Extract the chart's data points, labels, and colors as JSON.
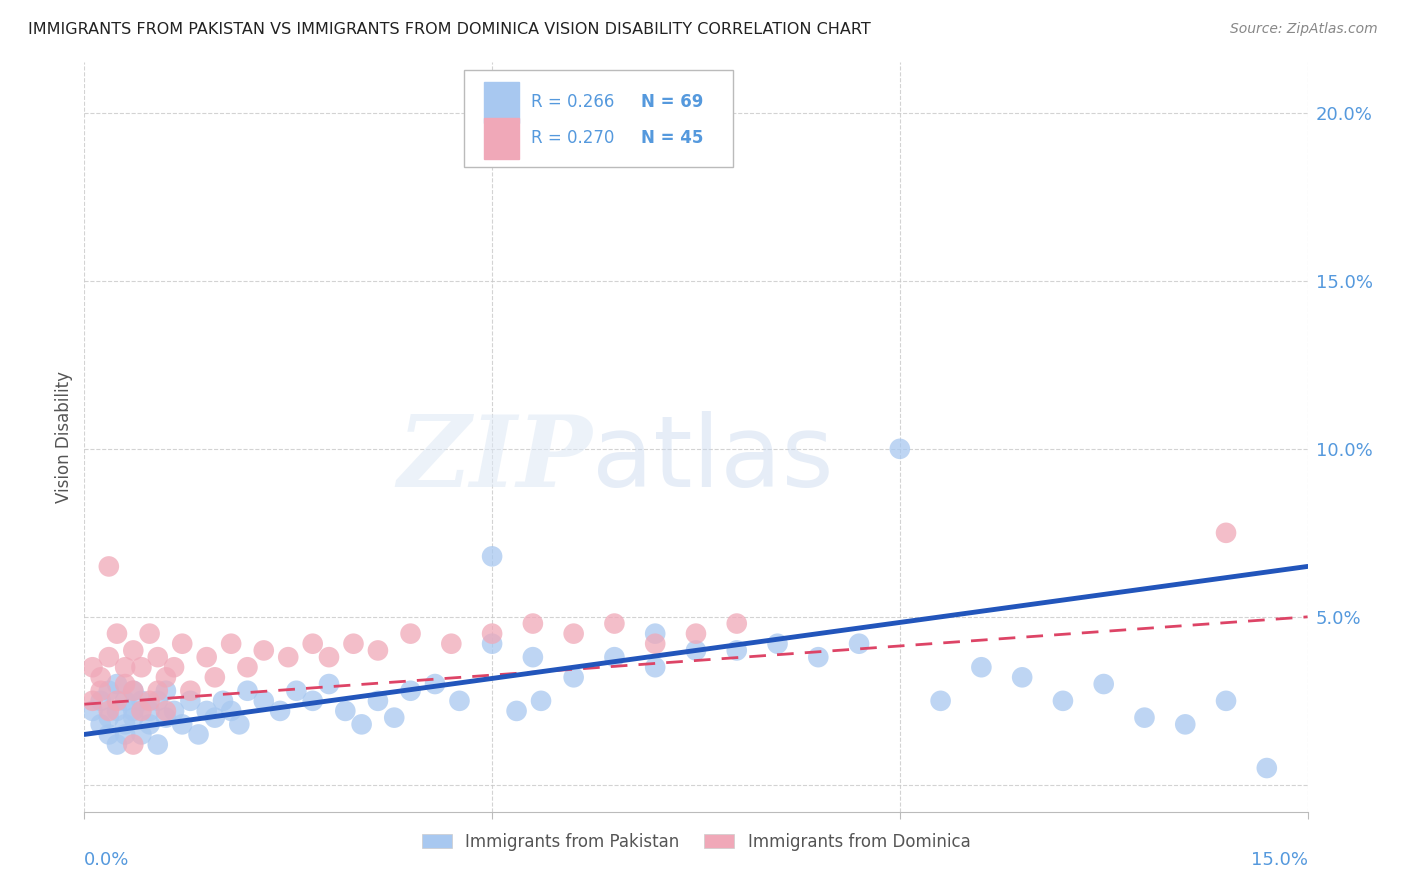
{
  "title": "IMMIGRANTS FROM PAKISTAN VS IMMIGRANTS FROM DOMINICA VISION DISABILITY CORRELATION CHART",
  "source": "Source: ZipAtlas.com",
  "ylabel": "Vision Disability",
  "xlim": [
    0.0,
    0.15
  ],
  "ylim": [
    -0.008,
    0.215
  ],
  "background_color": "#ffffff",
  "legend_R1": "R = 0.266",
  "legend_N1": "N = 69",
  "legend_R2": "R = 0.270",
  "legend_N2": "N = 45",
  "pakistan_color": "#a8c8f0",
  "dominica_color": "#f0a8b8",
  "pakistan_line_color": "#2255bb",
  "dominica_line_color": "#dd4466",
  "pakistan_scatter_x": [
    0.001,
    0.002,
    0.002,
    0.003,
    0.003,
    0.003,
    0.004,
    0.004,
    0.004,
    0.005,
    0.005,
    0.005,
    0.006,
    0.006,
    0.006,
    0.007,
    0.007,
    0.008,
    0.008,
    0.009,
    0.009,
    0.01,
    0.01,
    0.011,
    0.012,
    0.013,
    0.014,
    0.015,
    0.016,
    0.017,
    0.018,
    0.019,
    0.02,
    0.022,
    0.024,
    0.026,
    0.028,
    0.03,
    0.032,
    0.034,
    0.036,
    0.038,
    0.04,
    0.043,
    0.046,
    0.05,
    0.053,
    0.056,
    0.06,
    0.065,
    0.07,
    0.075,
    0.08,
    0.085,
    0.09,
    0.095,
    0.1,
    0.105,
    0.11,
    0.115,
    0.12,
    0.125,
    0.13,
    0.135,
    0.14,
    0.145,
    0.05,
    0.055,
    0.07
  ],
  "pakistan_scatter_y": [
    0.022,
    0.018,
    0.025,
    0.015,
    0.02,
    0.028,
    0.012,
    0.022,
    0.03,
    0.018,
    0.025,
    0.015,
    0.02,
    0.028,
    0.022,
    0.015,
    0.025,
    0.018,
    0.022,
    0.012,
    0.025,
    0.02,
    0.028,
    0.022,
    0.018,
    0.025,
    0.015,
    0.022,
    0.02,
    0.025,
    0.022,
    0.018,
    0.028,
    0.025,
    0.022,
    0.028,
    0.025,
    0.03,
    0.022,
    0.018,
    0.025,
    0.02,
    0.028,
    0.03,
    0.025,
    0.068,
    0.022,
    0.025,
    0.032,
    0.038,
    0.035,
    0.04,
    0.04,
    0.042,
    0.038,
    0.042,
    0.1,
    0.025,
    0.035,
    0.032,
    0.025,
    0.03,
    0.02,
    0.018,
    0.025,
    0.005,
    0.042,
    0.038,
    0.045
  ],
  "dominica_scatter_x": [
    0.001,
    0.001,
    0.002,
    0.002,
    0.003,
    0.003,
    0.004,
    0.004,
    0.005,
    0.005,
    0.006,
    0.006,
    0.007,
    0.007,
    0.008,
    0.008,
    0.009,
    0.009,
    0.01,
    0.01,
    0.011,
    0.012,
    0.013,
    0.015,
    0.016,
    0.018,
    0.02,
    0.022,
    0.025,
    0.028,
    0.03,
    0.033,
    0.036,
    0.04,
    0.045,
    0.05,
    0.055,
    0.06,
    0.065,
    0.07,
    0.075,
    0.08,
    0.003,
    0.006,
    0.14
  ],
  "dominica_scatter_y": [
    0.025,
    0.035,
    0.028,
    0.032,
    0.022,
    0.038,
    0.025,
    0.045,
    0.03,
    0.035,
    0.028,
    0.04,
    0.022,
    0.035,
    0.025,
    0.045,
    0.038,
    0.028,
    0.032,
    0.022,
    0.035,
    0.042,
    0.028,
    0.038,
    0.032,
    0.042,
    0.035,
    0.04,
    0.038,
    0.042,
    0.038,
    0.042,
    0.04,
    0.045,
    0.042,
    0.045,
    0.048,
    0.045,
    0.048,
    0.042,
    0.045,
    0.048,
    0.065,
    0.012,
    0.075
  ],
  "pak_line_x0": 0.0,
  "pak_line_y0": 0.015,
  "pak_line_x1": 0.15,
  "pak_line_y1": 0.065,
  "dom_line_x0": 0.0,
  "dom_line_y0": 0.024,
  "dom_line_x1": 0.15,
  "dom_line_y1": 0.05,
  "watermark_line1": "ZIP",
  "watermark_line2": "atlas",
  "grid_color": "#c8c8c8",
  "tick_color": "#5599dd",
  "title_color": "#222222",
  "axis_label_color": "#555555"
}
